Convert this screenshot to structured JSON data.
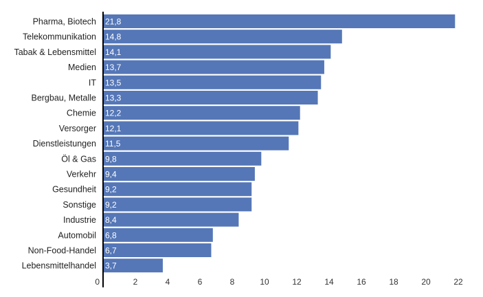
{
  "chart_data": {
    "type": "bar",
    "orientation": "horizontal",
    "categories": [
      "Pharma, Biotech",
      "Telekommunikation",
      "Tabak & Lebensmittel",
      "Medien",
      "IT",
      "Bergbau, Metalle",
      "Chemie",
      "Versorger",
      "Dienstleistungen",
      "Öl & Gas",
      "Verkehr",
      "Gesundheit",
      "Sonstige",
      "Industrie",
      "Automobil",
      "Non-Food-Handel",
      "Lebensmittelhandel"
    ],
    "values": [
      21.8,
      14.8,
      14.1,
      13.7,
      13.5,
      13.3,
      12.2,
      12.1,
      11.5,
      9.8,
      9.4,
      9.2,
      9.2,
      8.4,
      6.8,
      6.7,
      3.7
    ],
    "value_labels": [
      "21,8",
      "14,8",
      "14,1",
      "13,7",
      "13,5",
      "13,3",
      "12,2",
      "12,1",
      "11,5",
      "9,8",
      "9,4",
      "9,2",
      "9,2",
      "8,4",
      "6,8",
      "6,7",
      "3,7"
    ],
    "xticks": [
      0,
      2,
      4,
      6,
      8,
      10,
      12,
      14,
      16,
      18,
      20,
      22
    ],
    "xlim": [
      0,
      22
    ],
    "bar_color": "#5577b7",
    "grid": false,
    "legend": "none",
    "title": "",
    "xlabel": "",
    "ylabel": ""
  }
}
